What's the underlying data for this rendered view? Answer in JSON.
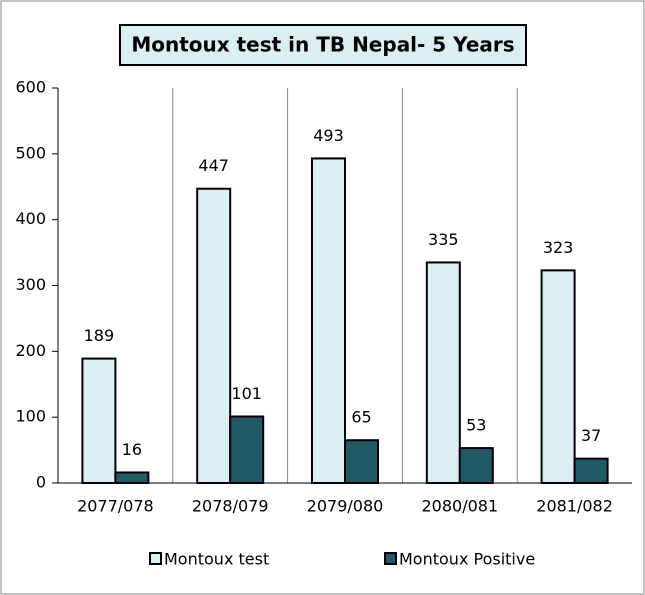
{
  "chart_data": {
    "type": "bar",
    "title": "Montoux test in TB Nepal- 5 Years",
    "categories": [
      "2077/078",
      "2078/079",
      "2079/080",
      "2080/081",
      "2081/082"
    ],
    "series": [
      {
        "name": "Montoux test",
        "color": "#dbeef4",
        "values": [
          189,
          447,
          493,
          335,
          323
        ]
      },
      {
        "name": "Montoux Positive",
        "color": "#215967",
        "values": [
          16,
          101,
          65,
          53,
          37
        ]
      }
    ],
    "ylim": [
      0,
      600
    ],
    "yticks": [
      0,
      100,
      200,
      300,
      400,
      500,
      600
    ],
    "grid": "vertical",
    "legend": "bottom"
  }
}
